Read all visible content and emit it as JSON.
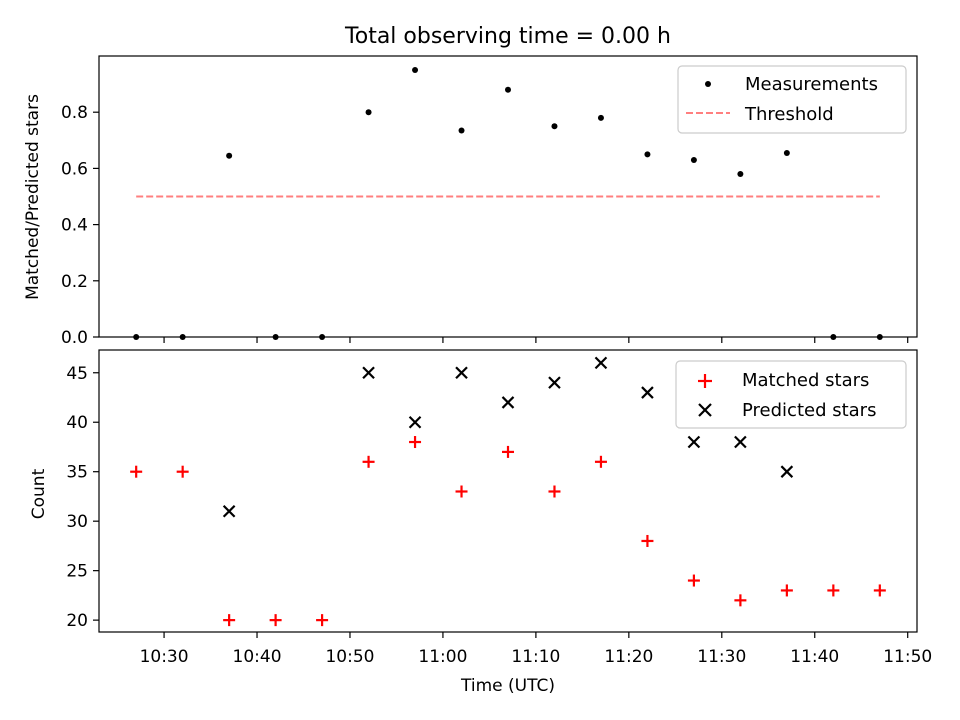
{
  "chart_data": [
    {
      "type": "scatter",
      "title": "Total observing time = 0.00 h",
      "ylabel": "Matched/Predicted stars",
      "xlabel": "",
      "xlim": [
        "10:23",
        "11:51"
      ],
      "ylim": [
        0,
        1.0
      ],
      "y_ticks": [
        "0.0",
        "0.2",
        "0.4",
        "0.6",
        "0.8"
      ],
      "legend_position": "upper right",
      "series": [
        {
          "name": "Measurements",
          "color": "#000000",
          "marker": "dot",
          "x": [
            "10:27",
            "10:32",
            "10:37",
            "10:42",
            "10:47",
            "10:52",
            "10:57",
            "11:02",
            "11:07",
            "11:12",
            "11:17",
            "11:22",
            "11:27",
            "11:32",
            "11:37",
            "11:42",
            "11:47"
          ],
          "y": [
            0,
            0,
            0.645,
            0,
            0,
            0.8,
            0.95,
            0.735,
            0.88,
            0.75,
            0.78,
            0.65,
            0.63,
            0.58,
            0.655,
            0,
            0
          ]
        },
        {
          "name": "Threshold",
          "color": "#ff7f7f",
          "style": "dashed",
          "x": [
            "10:27",
            "11:47"
          ],
          "y": [
            0.5,
            0.5
          ]
        }
      ]
    },
    {
      "type": "scatter",
      "title": "",
      "ylabel": "Count",
      "xlabel": "Time (UTC)",
      "xlim": [
        "10:23",
        "11:51"
      ],
      "ylim": [
        18.8,
        47.3
      ],
      "y_ticks": [
        "20",
        "25",
        "30",
        "35",
        "40",
        "45"
      ],
      "x_ticks": [
        "10:30",
        "10:40",
        "10:50",
        "11:00",
        "11:10",
        "11:20",
        "11:30",
        "11:40",
        "11:50"
      ],
      "legend_position": "upper right",
      "series": [
        {
          "name": "Matched stars",
          "color": "#ff0000",
          "marker": "plus",
          "x": [
            "10:27",
            "10:32",
            "10:37",
            "10:42",
            "10:47",
            "10:52",
            "10:57",
            "11:02",
            "11:07",
            "11:12",
            "11:17",
            "11:22",
            "11:27",
            "11:32",
            "11:37",
            "11:42",
            "11:47"
          ],
          "y": [
            35,
            35,
            20,
            20,
            20,
            36,
            38,
            33,
            37,
            33,
            36,
            28,
            24,
            22,
            23,
            23,
            23
          ]
        },
        {
          "name": "Predicted stars",
          "color": "#000000",
          "marker": "x",
          "x": [
            "10:37",
            "10:52",
            "10:57",
            "11:02",
            "11:07",
            "11:12",
            "11:17",
            "11:22",
            "11:27",
            "11:32",
            "11:37"
          ],
          "y": [
            31,
            45,
            40,
            45,
            42,
            44,
            46,
            43,
            38,
            38,
            35
          ]
        }
      ]
    }
  ]
}
